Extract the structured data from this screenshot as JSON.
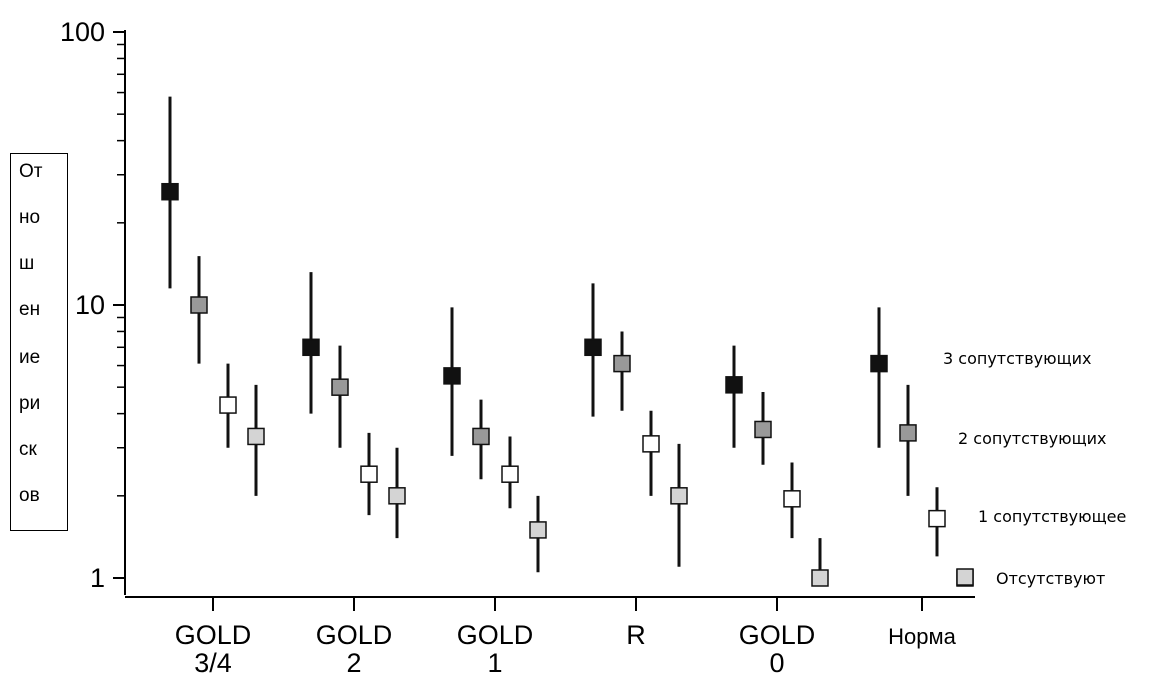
{
  "chart_data": {
    "type": "scatter",
    "yscale": "log",
    "ylim": [
      1,
      100
    ],
    "yticks": [
      {
        "value": 100,
        "label": "100"
      },
      {
        "value": 10,
        "label": "10"
      },
      {
        "value": 1,
        "label": "1"
      }
    ],
    "ylabel_lines": [
      "От",
      "но",
      "ш",
      "ен",
      "ие",
      "ри",
      "ск",
      "ов"
    ],
    "categories": [
      {
        "line1": "GOLD",
        "line2": "3/4"
      },
      {
        "line1": "GOLD",
        "line2": "2"
      },
      {
        "line1": "GOLD",
        "line2": "1"
      },
      {
        "line1": "R",
        "line2": ""
      },
      {
        "line1": "GOLD",
        "line2": "0"
      },
      {
        "line1": "Норма",
        "line2": ""
      }
    ],
    "series": [
      {
        "name": "3 сопутствующих",
        "color": "#111111",
        "points": [
          {
            "value": 26,
            "low": 11.5,
            "high": 58
          },
          {
            "value": 7.0,
            "low": 4.0,
            "high": 13.2
          },
          {
            "value": 5.5,
            "low": 2.8,
            "high": 9.8
          },
          {
            "value": 7.0,
            "low": 3.9,
            "high": 12.0
          },
          {
            "value": 5.1,
            "low": 3.0,
            "high": 7.1
          },
          {
            "value": 6.1,
            "low": 3.0,
            "high": 9.8
          }
        ]
      },
      {
        "name": "2 сопутствующих",
        "color": "#999999",
        "points": [
          {
            "value": 10,
            "low": 6.1,
            "high": 15.1
          },
          {
            "value": 5.0,
            "low": 3.0,
            "high": 7.1
          },
          {
            "value": 3.3,
            "low": 2.3,
            "high": 4.5
          },
          {
            "value": 6.1,
            "low": 4.1,
            "high": 8.0
          },
          {
            "value": 3.5,
            "low": 2.6,
            "high": 4.8
          },
          {
            "value": 3.4,
            "low": 2.0,
            "high": 5.1
          }
        ]
      },
      {
        "name": "1 сопутствующее",
        "color": "#ffffff",
        "points": [
          {
            "value": 4.3,
            "low": 3.0,
            "high": 6.1
          },
          {
            "value": 2.4,
            "low": 1.7,
            "high": 3.4
          },
          {
            "value": 2.4,
            "low": 1.8,
            "high": 3.3
          },
          {
            "value": 3.1,
            "low": 2.0,
            "high": 4.1
          },
          {
            "value": 1.95,
            "low": 1.4,
            "high": 2.65
          },
          {
            "value": 1.65,
            "low": 1.2,
            "high": 2.15
          }
        ]
      },
      {
        "name": "Отсутствуют",
        "color": "#d4d4d4",
        "points": [
          {
            "value": 3.3,
            "low": 2.0,
            "high": 5.1
          },
          {
            "value": 2.0,
            "low": 1.4,
            "high": 3.0
          },
          {
            "value": 1.5,
            "low": 1.05,
            "high": 2.0
          },
          {
            "value": 2.0,
            "low": 1.1,
            "high": 3.1
          },
          {
            "value": 1.0,
            "low": 0.95,
            "high": 1.4
          },
          {
            "value": 1.0,
            "low": 1.0,
            "high": 1.0
          }
        ]
      }
    ],
    "legend": [
      {
        "label": "3 сопутствующих"
      },
      {
        "label": "2 сопутствующих"
      },
      {
        "label": "1 сопутствующее"
      },
      {
        "label": "Отсутствуют",
        "marker_color": "#d4d4d4"
      }
    ],
    "grid": false,
    "legend_placement": "right"
  }
}
